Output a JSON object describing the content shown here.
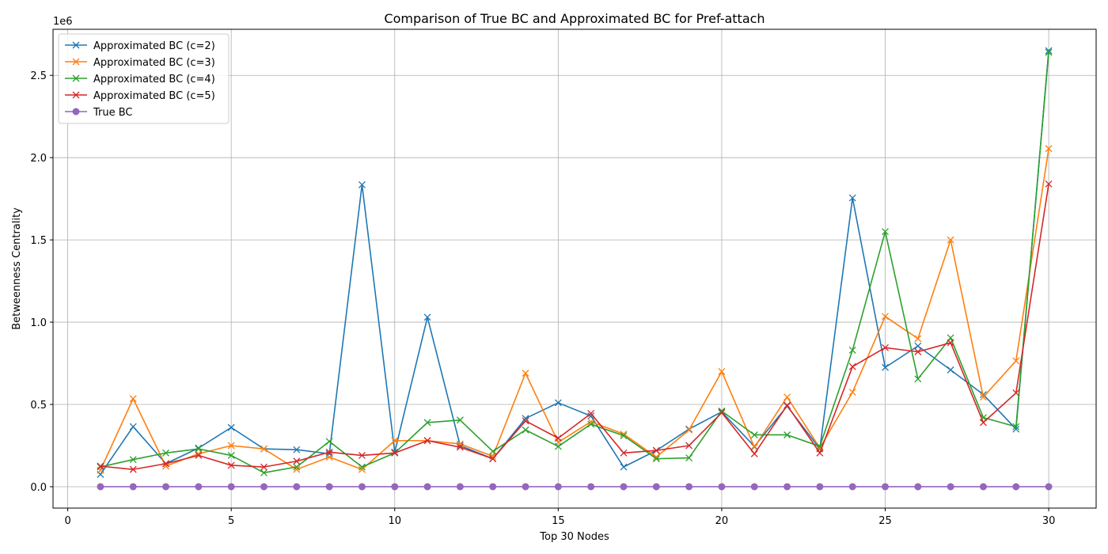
{
  "chart_data": {
    "type": "line",
    "title": "Comparison of True BC and Approximated BC for Pref-attach",
    "xlabel": "Top 30 Nodes",
    "ylabel": "Betweenness Centrality",
    "y_scale_label": "1e6",
    "xlim": [
      -0.45,
      31.45
    ],
    "ylim": [
      -130000,
      2780000
    ],
    "x_ticks": [
      0,
      5,
      10,
      15,
      20,
      25,
      30
    ],
    "x_tick_labels": [
      "0",
      "5",
      "10",
      "15",
      "20",
      "25",
      "30"
    ],
    "y_ticks": [
      0,
      500000,
      1000000,
      1500000,
      2000000,
      2500000
    ],
    "y_tick_labels": [
      "0.0",
      "0.5",
      "1.0",
      "1.5",
      "2.0",
      "2.5"
    ],
    "grid": true,
    "legend_position": "top-left",
    "x": [
      1,
      2,
      3,
      4,
      5,
      6,
      7,
      8,
      9,
      10,
      11,
      12,
      13,
      14,
      15,
      16,
      17,
      18,
      19,
      20,
      21,
      22,
      23,
      24,
      25,
      26,
      27,
      28,
      29,
      30
    ],
    "series": [
      {
        "name": "Approximated BC (c=2)",
        "color": "#1f77b4",
        "marker": "x",
        "values": [
          75000,
          365000,
          140000,
          235000,
          360000,
          230000,
          225000,
          200000,
          1835000,
          210000,
          1030000,
          250000,
          170000,
          415000,
          510000,
          430000,
          120000,
          220000,
          350000,
          455000,
          245000,
          490000,
          230000,
          1755000,
          725000,
          855000,
          710000,
          560000,
          350000,
          2650000
        ]
      },
      {
        "name": "Approximated BC (c=3)",
        "color": "#ff7f0e",
        "marker": "x",
        "values": [
          100000,
          535000,
          125000,
          200000,
          250000,
          230000,
          105000,
          180000,
          105000,
          280000,
          280000,
          260000,
          185000,
          690000,
          270000,
          395000,
          320000,
          180000,
          345000,
          700000,
          240000,
          545000,
          235000,
          575000,
          1035000,
          900000,
          1500000,
          545000,
          765000,
          2055000
        ]
      },
      {
        "name": "Approximated BC (c=4)",
        "color": "#2ca02c",
        "marker": "x",
        "values": [
          120000,
          165000,
          205000,
          230000,
          190000,
          85000,
          120000,
          275000,
          120000,
          205000,
          390000,
          405000,
          215000,
          345000,
          245000,
          380000,
          310000,
          170000,
          175000,
          460000,
          315000,
          315000,
          245000,
          830000,
          1550000,
          655000,
          905000,
          420000,
          365000,
          2640000
        ]
      },
      {
        "name": "Approximated BC (c=5)",
        "color": "#d62728",
        "marker": "x",
        "values": [
          125000,
          105000,
          140000,
          190000,
          130000,
          120000,
          155000,
          210000,
          190000,
          205000,
          280000,
          240000,
          170000,
          400000,
          295000,
          445000,
          205000,
          220000,
          250000,
          450000,
          200000,
          495000,
          205000,
          730000,
          845000,
          820000,
          875000,
          390000,
          570000,
          1840000
        ]
      },
      {
        "name": "True BC",
        "color": "#9467bd",
        "marker": "o",
        "values": [
          0,
          0,
          0,
          0,
          0,
          0,
          0,
          0,
          0,
          0,
          0,
          0,
          0,
          0,
          0,
          0,
          0,
          0,
          0,
          0,
          0,
          0,
          0,
          0,
          0,
          0,
          0,
          0,
          0,
          0
        ]
      }
    ]
  }
}
